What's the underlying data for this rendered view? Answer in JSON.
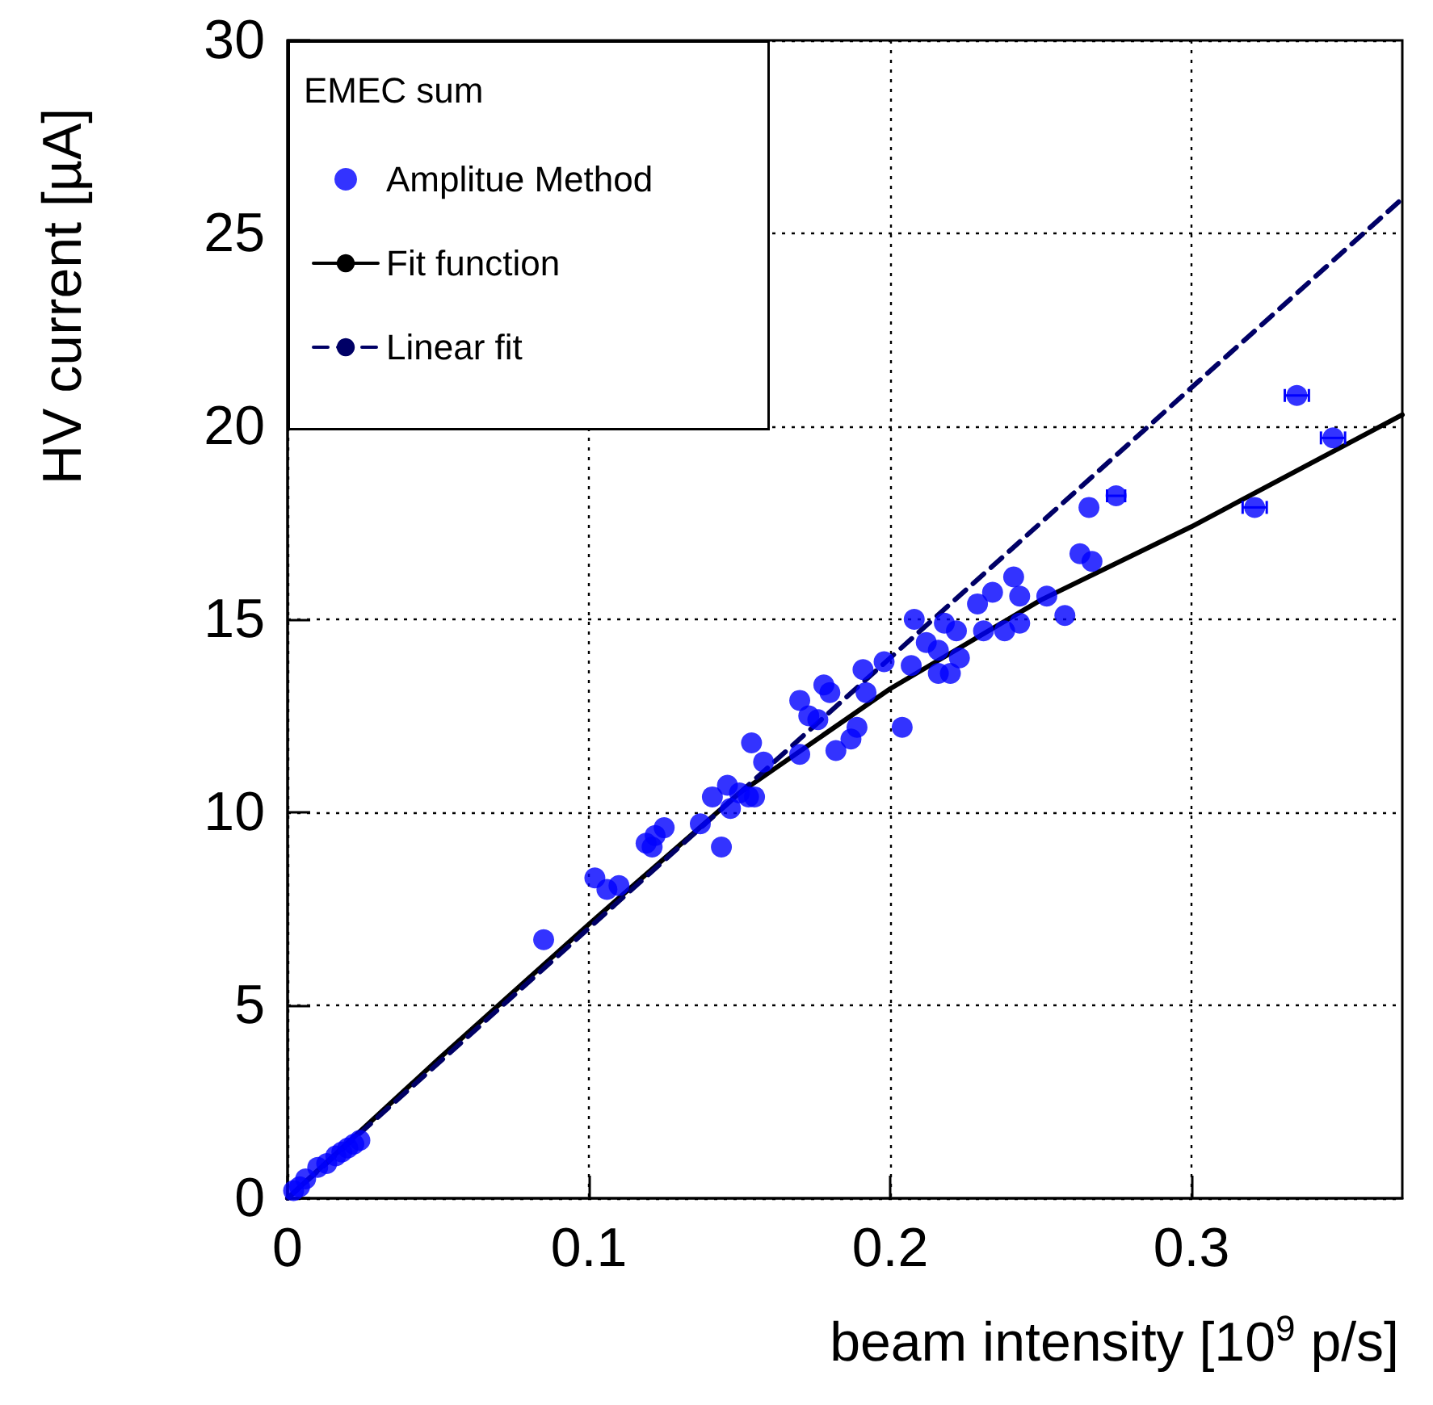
{
  "chart_data": {
    "type": "scatter",
    "xlabel": "beam intensity [10$^{9}$ p/s]",
    "ylabel": "HV current [µA]",
    "legend_title": "EMEC sum",
    "xlim": [
      0,
      0.37
    ],
    "xticks": [
      0,
      0.1,
      0.2,
      0.3
    ],
    "ylim": [
      0,
      30
    ],
    "yticks": [
      0,
      5,
      10,
      15,
      20,
      25,
      30
    ],
    "grid": true,
    "legend": "top left",
    "series": [
      {
        "name": "Amplitue Method",
        "color": "#0000ff",
        "marker": "circle",
        "x": [
          0.002,
          0.004,
          0.006,
          0.01,
          0.013,
          0.016,
          0.018,
          0.02,
          0.022,
          0.024,
          0.085,
          0.102,
          0.106,
          0.11,
          0.119,
          0.121,
          0.122,
          0.125,
          0.137,
          0.141,
          0.144,
          0.146,
          0.147,
          0.15,
          0.153,
          0.154,
          0.155,
          0.158,
          0.17,
          0.17,
          0.173,
          0.176,
          0.178,
          0.18,
          0.182,
          0.187,
          0.189,
          0.191,
          0.192,
          0.198,
          0.204,
          0.207,
          0.208,
          0.212,
          0.216,
          0.216,
          0.218,
          0.22,
          0.222,
          0.223,
          0.229,
          0.231,
          0.234,
          0.238,
          0.241,
          0.243,
          0.243,
          0.252,
          0.258,
          0.263,
          0.266,
          0.267,
          0.275,
          0.321,
          0.335,
          0.347
        ],
        "values": [
          0.2,
          0.3,
          0.5,
          0.8,
          0.9,
          1.1,
          1.2,
          1.3,
          1.4,
          1.5,
          6.7,
          8.3,
          8.0,
          8.1,
          9.2,
          9.1,
          9.4,
          9.6,
          9.7,
          10.4,
          9.1,
          10.7,
          10.1,
          10.5,
          10.4,
          11.8,
          10.4,
          11.3,
          11.5,
          12.9,
          12.5,
          12.4,
          13.3,
          13.1,
          11.6,
          11.9,
          12.2,
          13.7,
          13.1,
          13.9,
          12.2,
          13.8,
          15.0,
          14.4,
          14.2,
          13.6,
          14.9,
          13.6,
          14.7,
          14.0,
          15.4,
          14.7,
          15.7,
          14.7,
          16.1,
          15.6,
          14.9,
          15.6,
          15.1,
          16.7,
          17.9,
          16.5,
          18.2,
          17.9,
          20.8,
          19.7
        ],
        "xerrors": [
          null,
          null,
          null,
          null,
          null,
          null,
          null,
          null,
          null,
          null,
          null,
          null,
          null,
          null,
          null,
          null,
          null,
          null,
          null,
          null,
          null,
          null,
          null,
          null,
          null,
          null,
          null,
          null,
          null,
          null,
          null,
          null,
          null,
          null,
          null,
          null,
          null,
          null,
          null,
          null,
          null,
          null,
          null,
          null,
          null,
          null,
          null,
          null,
          null,
          null,
          null,
          null,
          null,
          null,
          null,
          null,
          null,
          null,
          null,
          null,
          null,
          null,
          0.003,
          0.004,
          0.004,
          0.004
        ]
      },
      {
        "name": "Fit function",
        "type": "line",
        "color": "#000000",
        "line_style": "solid",
        "x": [
          0,
          0.05,
          0.1,
          0.15,
          0.2,
          0.25,
          0.3,
          0.37
        ],
        "values": [
          0,
          3.6,
          7.1,
          10.5,
          13.2,
          15.5,
          17.4,
          20.3
        ]
      },
      {
        "name": "Linear fit",
        "type": "line",
        "color": "#000066",
        "line_style": "dashed",
        "x": [
          0,
          0.37
        ],
        "values": [
          0,
          25.9
        ]
      }
    ]
  }
}
